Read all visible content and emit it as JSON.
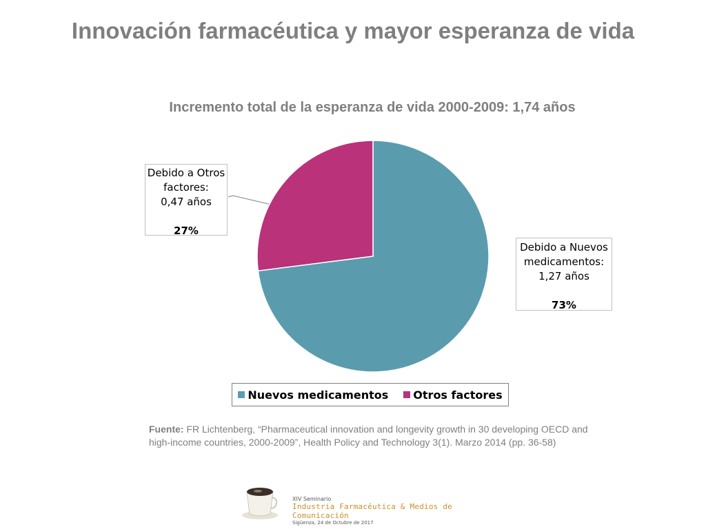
{
  "slide": {
    "title": "Innovación farmacéutica y mayor esperanza de vida"
  },
  "chart_data": {
    "type": "pie",
    "title": "Incremento total de la esperanza de vida 2000-2009: 1,74 años",
    "slices": [
      {
        "name": "Nuevos medicamentos",
        "value": 1.27,
        "percent": 73,
        "color": "#5a9cae"
      },
      {
        "name": "Otros factores",
        "value": 0.47,
        "percent": 27,
        "color": "#b9327a"
      }
    ],
    "labels": {
      "otros": {
        "line1": "Debido a Otros",
        "line2": "factores:",
        "line3": "0,47 años",
        "pct": "27%"
      },
      "nuevos": {
        "line1": "Debido a Nuevos",
        "line2": "medicamentos:",
        "line3": "1,27 años",
        "pct": "73%"
      }
    },
    "legend": [
      "Nuevos medicamentos",
      "Otros factores"
    ],
    "legend_position": "bottom"
  },
  "source": {
    "label": "Fuente:",
    "text": " FR Lichtenberg, “Pharmaceutical innovation and longevity growth in 30 developing OECD and high-income countries, 2000-2009”, Health Policy and Technology 3(1). Marzo 2014 (pp. 36-58)"
  },
  "footer": {
    "line1": "XIV Seminario",
    "line2": "Industria Farmacéutica & Medios de Comunicación",
    "line3": "Sigüenza, 24 de Octubre de 2017",
    "logo": "coffee-cup-logo"
  }
}
